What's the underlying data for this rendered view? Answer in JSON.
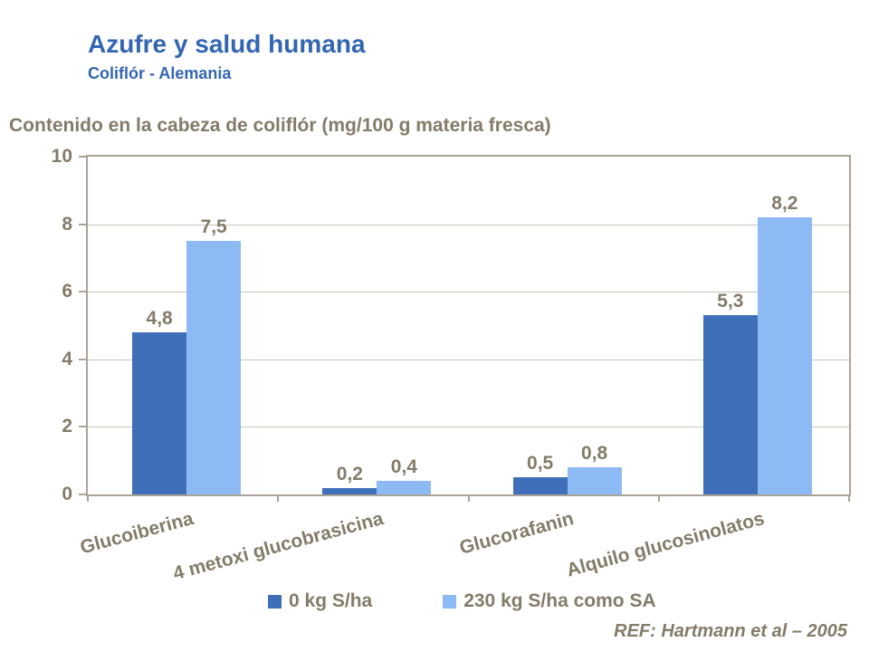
{
  "slide": {
    "title": "Azufre y salud humana",
    "subtitle": "Coliflór - Alemania",
    "reference": "REF: Hartmann et al – 2005"
  },
  "colors": {
    "title_blue": "#3366B2",
    "text_brown": "#847B68",
    "axis_border": "#ABA396",
    "gridline": "#C9C4BA",
    "series1_dark_blue": "#3F6FB8",
    "series2_light_blue": "#8DB9F4"
  },
  "chart_data": {
    "type": "bar",
    "title": "Contenido en la cabeza de coliflór (mg/100 g materia fresca)",
    "categories": [
      "Glucoiberina",
      "4 metoxi glucobrasicina",
      "Glucorafanin",
      "Alquilo glucosinolatos"
    ],
    "series": [
      {
        "name": "0 kg S/ha",
        "color": "#3F6FB8",
        "values": [
          4.8,
          0.2,
          0.5,
          5.3
        ]
      },
      {
        "name": "230 kg S/ha como SA",
        "color": "#8DB9F4",
        "values": [
          7.5,
          0.4,
          0.8,
          8.2
        ]
      }
    ],
    "xlabel": "",
    "ylabel": "",
    "ylim": [
      0,
      10
    ],
    "yticks": [
      0,
      2,
      4,
      6,
      8,
      10
    ],
    "grid": true,
    "legend_position": "bottom",
    "decimal_separator": ","
  }
}
